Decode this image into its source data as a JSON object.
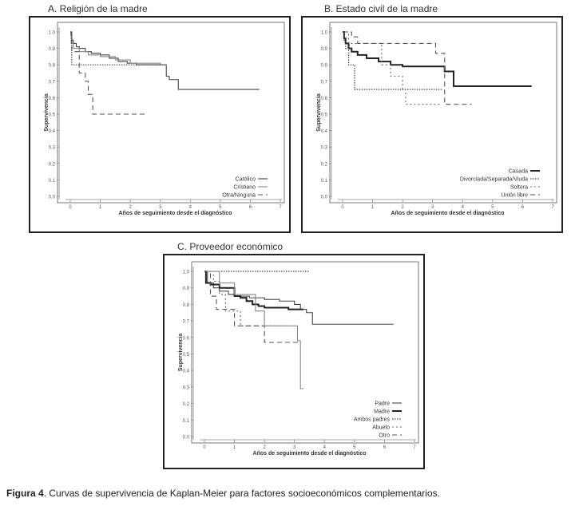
{
  "caption": {
    "label": "Figura 4",
    "text": ". Curvas de supervivencia de Kaplan-Meier para factores socioeconómicos complementarios."
  },
  "colors": {
    "frame": "#222222",
    "text": "#333333",
    "line": "#555555"
  },
  "chart_data": [
    {
      "type": "line",
      "title": "A. Religión de la madre",
      "xlabel": "Años de seguimiento desde el diagnóstico",
      "ylabel": "Supervivencia",
      "xlim": [
        0,
        7
      ],
      "ylim": [
        0,
        1
      ],
      "xticks": [
        "0",
        "1",
        "2",
        "3",
        "4",
        "5",
        "6",
        "7"
      ],
      "yticks": [
        "0.0",
        "0.1",
        "0.2",
        "0.3",
        "0.4",
        "0.5",
        "0.6",
        "0.7",
        "0.8",
        "0.9",
        "1.0"
      ],
      "legend_position": "bottom-right",
      "series": [
        {
          "name": "Católico",
          "style": "solid-thin",
          "x": [
            0,
            0.02,
            0.05,
            0.1,
            0.2,
            0.3,
            0.5,
            0.7,
            1.0,
            1.3,
            1.6,
            1.9,
            2.2,
            2.6,
            3.0,
            3.2,
            3.3,
            3.4,
            3.6,
            6.3
          ],
          "y": [
            1.0,
            0.98,
            0.95,
            0.93,
            0.91,
            0.9,
            0.88,
            0.87,
            0.86,
            0.84,
            0.82,
            0.81,
            0.8,
            0.8,
            0.8,
            0.73,
            0.71,
            0.71,
            0.65,
            0.65
          ]
        },
        {
          "name": "Cristiano",
          "style": "solid-thin-gray",
          "x": [
            0,
            0.03,
            0.1,
            0.3,
            0.6,
            1.0,
            1.5,
            2.0,
            2.5,
            3.0,
            3.2
          ],
          "y": [
            1.0,
            0.93,
            0.9,
            0.88,
            0.86,
            0.85,
            0.83,
            0.81,
            0.81,
            0.8,
            0.79
          ]
        },
        {
          "name": "Otra/Ninguna",
          "style": "dashed",
          "x": [
            0,
            0.05,
            0.3,
            0.5,
            0.6,
            0.75,
            1.0,
            2.5
          ],
          "y": [
            1.0,
            0.88,
            0.75,
            0.7,
            0.62,
            0.5,
            0.5,
            0.5
          ]
        },
        {
          "name": "",
          "style": "dotted",
          "x": [
            0,
            0.05,
            3.2
          ],
          "y": [
            1.0,
            0.8,
            0.8
          ]
        }
      ]
    },
    {
      "type": "line",
      "title": "B. Estado civil de la madre",
      "xlabel": "Años de seguimiento desde el diagnóstico",
      "ylabel": "Supervivencia",
      "xlim": [
        0,
        7
      ],
      "ylim": [
        0,
        1
      ],
      "xticks": [
        "0",
        "1",
        "2",
        "3",
        "4",
        "5",
        "6",
        "7"
      ],
      "yticks": [
        "0.0",
        "0.1",
        "0.2",
        "0.3",
        "0.4",
        "0.5",
        "0.6",
        "0.7",
        "0.8",
        "0.9",
        "1.0"
      ],
      "legend_position": "bottom-right",
      "series": [
        {
          "name": "Casada",
          "style": "solid-thick",
          "x": [
            0,
            0.05,
            0.1,
            0.2,
            0.3,
            0.5,
            0.8,
            1.2,
            1.6,
            2.0,
            2.5,
            3.2,
            3.4,
            3.7,
            6.3
          ],
          "y": [
            1.0,
            0.96,
            0.93,
            0.9,
            0.88,
            0.86,
            0.84,
            0.82,
            0.8,
            0.79,
            0.79,
            0.79,
            0.76,
            0.67,
            0.67
          ]
        },
        {
          "name": "Divorciada/Separada/Viuda",
          "style": "dotted",
          "x": [
            0,
            0.05,
            0.1,
            0.2,
            0.4,
            1.0,
            3.3
          ],
          "y": [
            1.0,
            0.95,
            0.9,
            0.8,
            0.65,
            0.65,
            0.65
          ]
        },
        {
          "name": "Soltera",
          "style": "fine-dash",
          "x": [
            0,
            0.2,
            1.0,
            1.3,
            1.6,
            2.0,
            2.1,
            3.0,
            3.3
          ],
          "y": [
            1.0,
            0.93,
            0.93,
            0.8,
            0.73,
            0.65,
            0.56,
            0.56,
            0.56
          ]
        },
        {
          "name": "Unión libre",
          "style": "dashed",
          "x": [
            0,
            0.3,
            0.5,
            2.6,
            3.1,
            3.4,
            4.3
          ],
          "y": [
            1.0,
            0.97,
            0.93,
            0.93,
            0.87,
            0.56,
            0.56
          ]
        }
      ]
    },
    {
      "type": "line",
      "title": "C. Proveedor económico",
      "xlabel": "Años de seguimiento desde el diagnóstico",
      "ylabel": "Supervivencia",
      "xlim": [
        0,
        7
      ],
      "ylim": [
        0,
        1
      ],
      "xticks": [
        "0",
        "1",
        "2",
        "3",
        "4",
        "5",
        "6",
        "7"
      ],
      "yticks": [
        "0.0",
        "0.1",
        "0.2",
        "0.3",
        "0.4",
        "0.5",
        "0.6",
        "0.7",
        "0.8",
        "0.9",
        "1.0"
      ],
      "legend_position": "bottom-right",
      "series": [
        {
          "name": "Padre",
          "style": "solid-thin",
          "x": [
            0,
            0.1,
            0.3,
            0.5,
            0.8,
            1.0,
            1.5,
            2.0,
            2.5,
            3.0,
            3.2,
            3.4,
            3.6,
            6.3
          ],
          "y": [
            1.0,
            0.93,
            0.9,
            0.88,
            0.86,
            0.85,
            0.84,
            0.83,
            0.82,
            0.8,
            0.77,
            0.75,
            0.68,
            0.68
          ]
        },
        {
          "name": "Madre",
          "style": "solid-thick",
          "x": [
            0,
            0.05,
            0.2,
            0.5,
            1.0,
            1.2,
            1.4,
            1.6,
            1.8,
            2.0,
            2.4,
            2.8,
            3.1,
            3.3
          ],
          "y": [
            1.0,
            0.93,
            0.92,
            0.9,
            0.85,
            0.84,
            0.82,
            0.8,
            0.79,
            0.78,
            0.78,
            0.77,
            0.77,
            0.77
          ]
        },
        {
          "name": "Ambos padres",
          "style": "dotted",
          "x": [
            0,
            3.5
          ],
          "y": [
            1.0,
            1.0
          ]
        },
        {
          "name": "Abuelo",
          "style": "fine-dash",
          "x": [
            0,
            0.3,
            0.5,
            0.7,
            1.2,
            2.6
          ],
          "y": [
            1.0,
            0.94,
            0.86,
            0.76,
            0.67,
            0.67
          ]
        },
        {
          "name": "Otro",
          "style": "dashed",
          "x": [
            0,
            0.2,
            0.4,
            0.6,
            1.0,
            1.3,
            1.8,
            2.0,
            3.2
          ],
          "y": [
            1.0,
            0.85,
            0.77,
            0.77,
            0.67,
            0.67,
            0.67,
            0.57,
            0.57
          ]
        },
        {
          "name": "",
          "style": "solid-thin-gray",
          "x": [
            0,
            0.5,
            1.0,
            1.3,
            1.7,
            2.0,
            2.5,
            3.1,
            3.2,
            3.3
          ],
          "y": [
            1.0,
            0.93,
            0.86,
            0.86,
            0.76,
            0.67,
            0.67,
            0.58,
            0.29,
            0.29
          ]
        }
      ]
    }
  ]
}
